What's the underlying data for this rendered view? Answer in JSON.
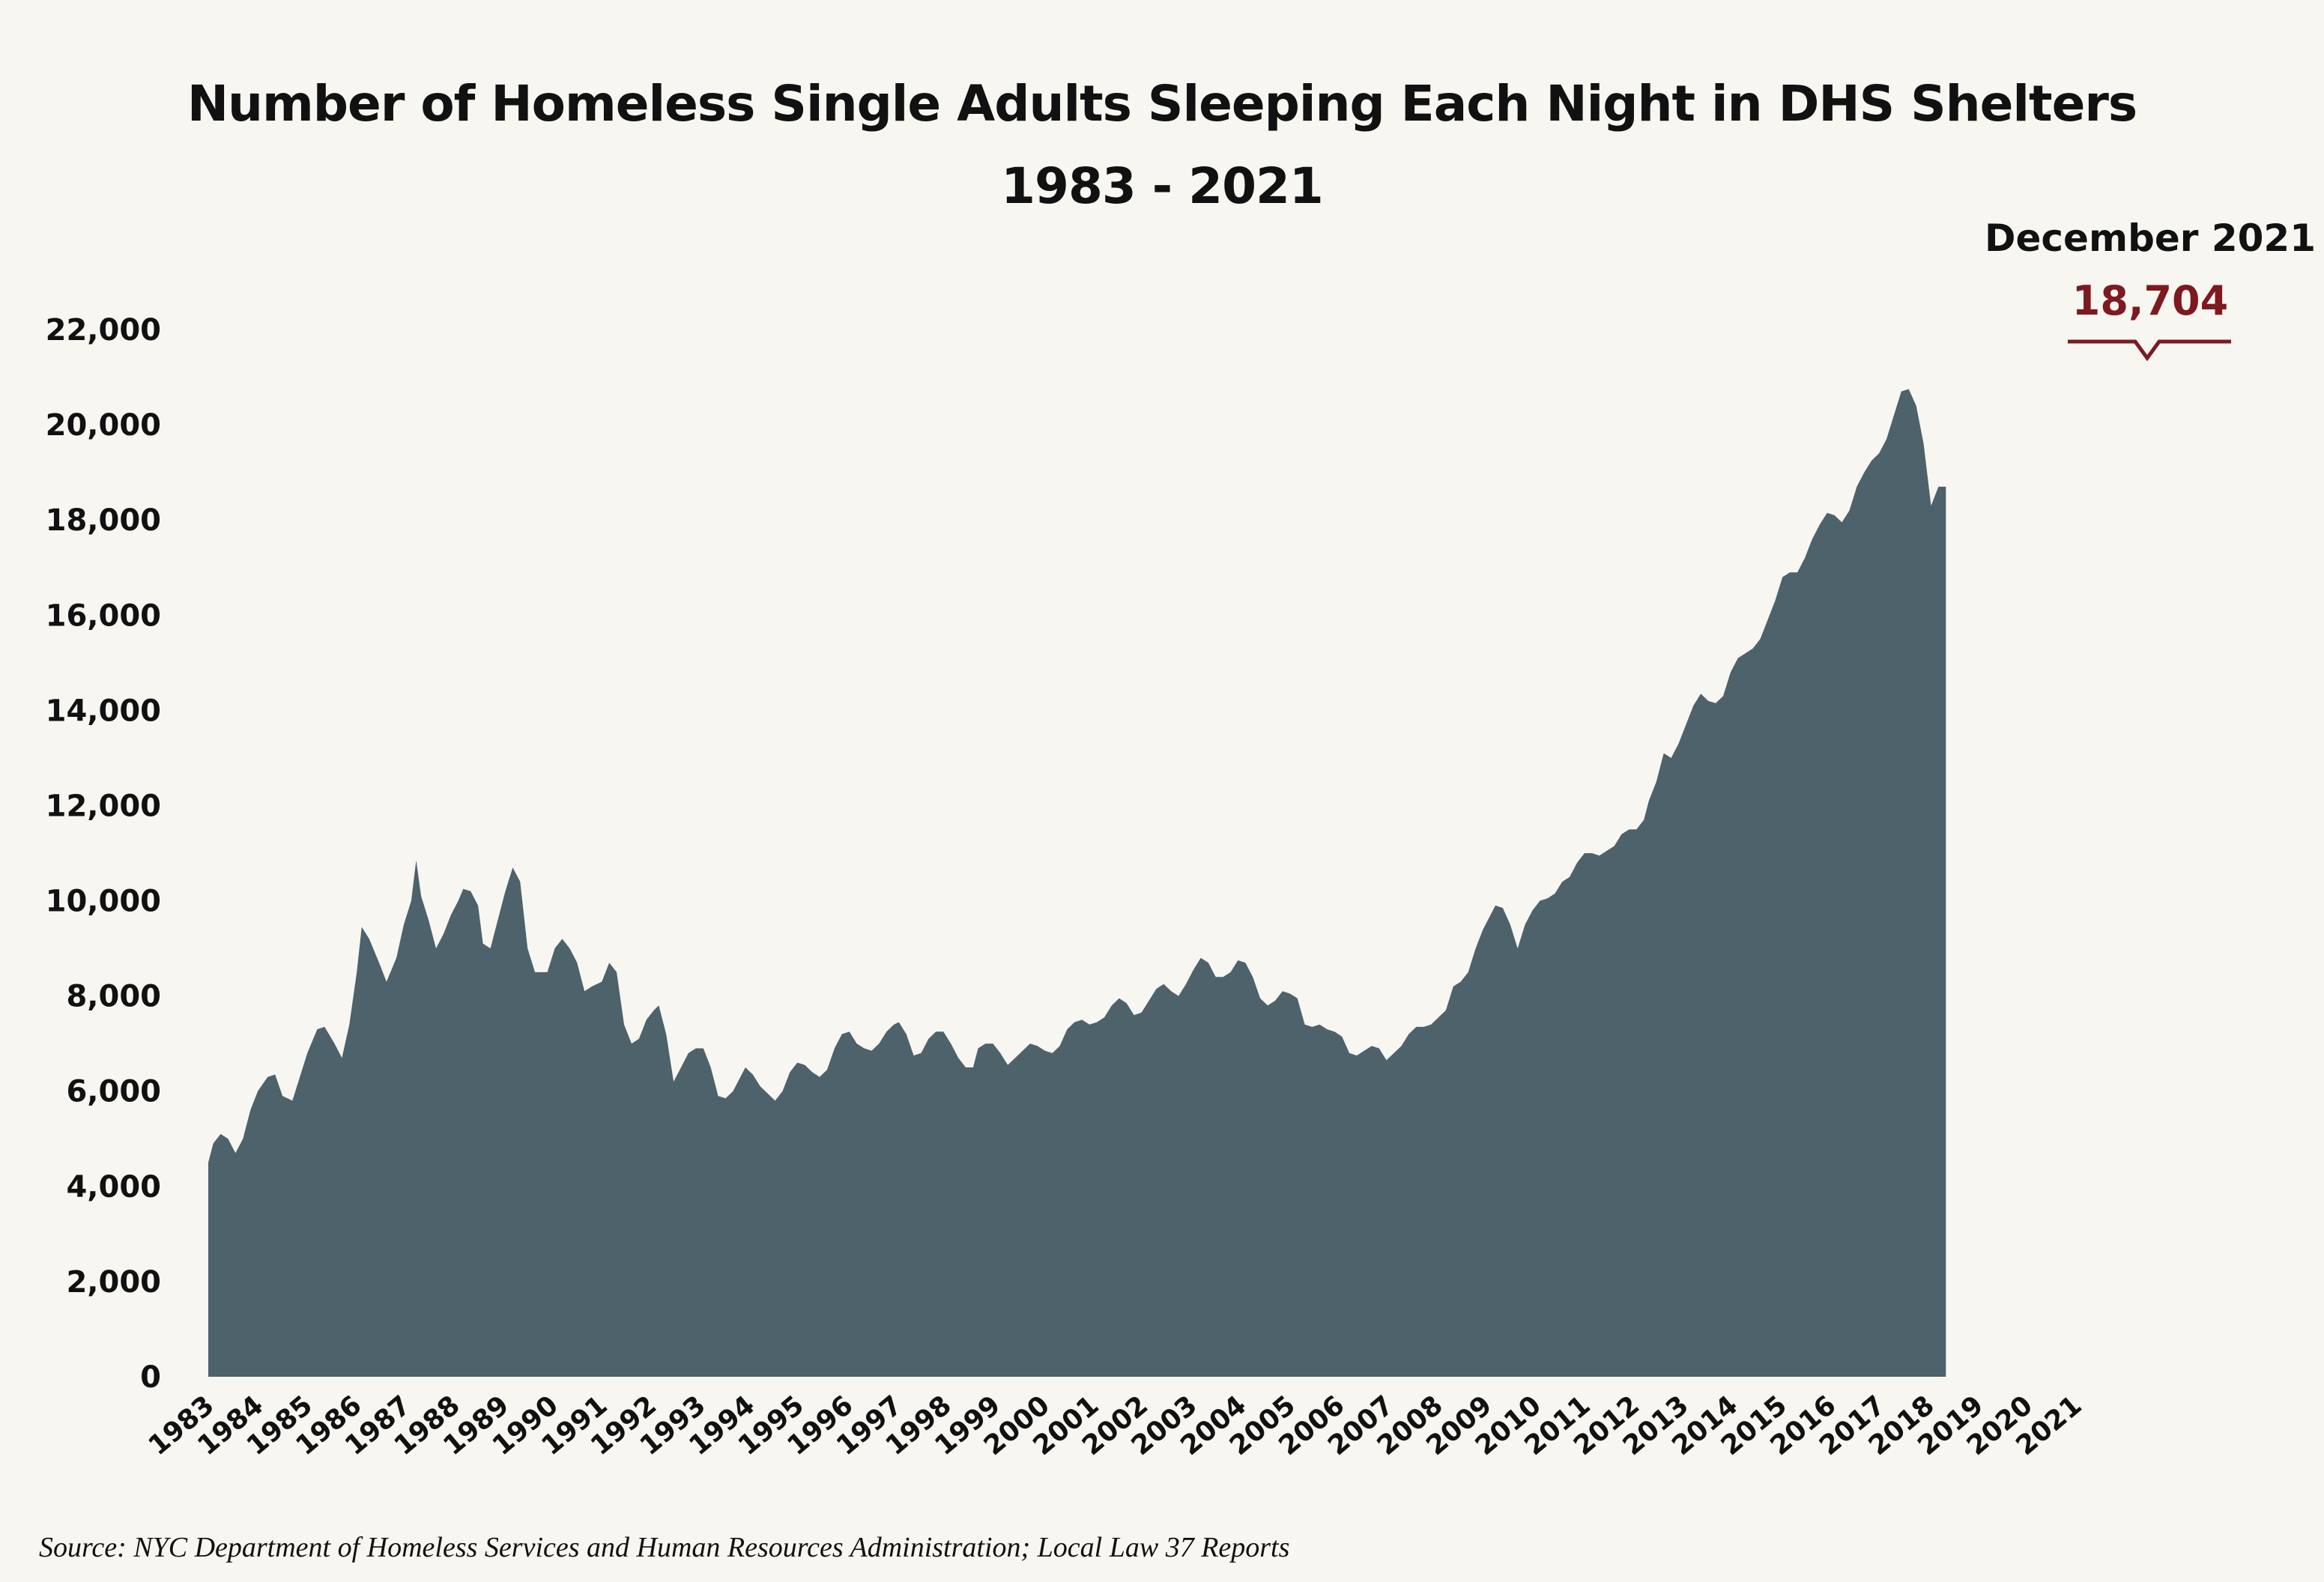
{
  "header": {
    "title_line1": "Number of Homeless Single Adults Sleeping Each Night in DHS Shelters",
    "title_line2": "1983 - 2021"
  },
  "annotation": {
    "date_label": "December 2021",
    "value_label": "18,704"
  },
  "source": "Source:  NYC Department of Homeless Services and Human Resources Administration; Local Law 37 Reports",
  "colors": {
    "background": "#f8f6f1",
    "area_fill": "#4d626b",
    "annotation_accent": "#7d1a20"
  },
  "chart_data": {
    "type": "area",
    "title": "Number of Homeless Single Adults Sleeping Each Night in DHS Shelters 1983 - 2021",
    "xlabel": "",
    "ylabel": "",
    "ylim": [
      0,
      22000
    ],
    "yticks": [
      0,
      2000,
      4000,
      6000,
      8000,
      10000,
      12000,
      14000,
      16000,
      18000,
      20000,
      22000
    ],
    "ytick_labels": [
      "0",
      "2,000",
      "4,000",
      "6,000",
      "8,000",
      "10,000",
      "12,000",
      "14,000",
      "16,000",
      "18,000",
      "20,000",
      "22,000"
    ],
    "xtick_labels": [
      "1983",
      "1984",
      "1985",
      "1986",
      "1987",
      "1988",
      "1989",
      "1990",
      "1991",
      "1992",
      "1993",
      "1994",
      "1995",
      "1996",
      "1997",
      "1998",
      "1999",
      "2000",
      "2001",
      "2002",
      "2003",
      "2004",
      "2005",
      "2006",
      "2007",
      "2008",
      "2009",
      "2010",
      "2011",
      "2012",
      "2013",
      "2014",
      "2015",
      "2016",
      "2017",
      "2018",
      "2019",
      "2020",
      "2021"
    ],
    "x_start_year": 1983,
    "x_end_year": 2022,
    "grid": false,
    "legend": "none",
    "series": [
      {
        "points": [
          [
            1983.0,
            4500
          ],
          [
            1983.1,
            4900
          ],
          [
            1983.25,
            5100
          ],
          [
            1983.4,
            5000
          ],
          [
            1983.55,
            4700
          ],
          [
            1983.7,
            5000
          ],
          [
            1983.85,
            5600
          ],
          [
            1984.0,
            6000
          ],
          [
            1984.2,
            6300
          ],
          [
            1984.35,
            6350
          ],
          [
            1984.5,
            5900
          ],
          [
            1984.7,
            5800
          ],
          [
            1984.85,
            6300
          ],
          [
            1985.0,
            6800
          ],
          [
            1985.2,
            7300
          ],
          [
            1985.35,
            7350
          ],
          [
            1985.55,
            7000
          ],
          [
            1985.7,
            6700
          ],
          [
            1985.85,
            7400
          ],
          [
            1986.0,
            8500
          ],
          [
            1986.1,
            9450
          ],
          [
            1986.25,
            9200
          ],
          [
            1986.45,
            8700
          ],
          [
            1986.6,
            8300
          ],
          [
            1986.8,
            8800
          ],
          [
            1986.95,
            9500
          ],
          [
            1987.1,
            10000
          ],
          [
            1987.2,
            10850
          ],
          [
            1987.3,
            10100
          ],
          [
            1987.45,
            9600
          ],
          [
            1987.6,
            9000
          ],
          [
            1987.75,
            9300
          ],
          [
            1987.9,
            9700
          ],
          [
            1988.05,
            10000
          ],
          [
            1988.15,
            10250
          ],
          [
            1988.3,
            10200
          ],
          [
            1988.45,
            9900
          ],
          [
            1988.55,
            9100
          ],
          [
            1988.7,
            9000
          ],
          [
            1988.85,
            9600
          ],
          [
            1989.0,
            10200
          ],
          [
            1989.15,
            10700
          ],
          [
            1989.3,
            10400
          ],
          [
            1989.45,
            9000
          ],
          [
            1989.6,
            8500
          ],
          [
            1989.85,
            8500
          ],
          [
            1990.0,
            9000
          ],
          [
            1990.15,
            9200
          ],
          [
            1990.3,
            9000
          ],
          [
            1990.45,
            8700
          ],
          [
            1990.6,
            8100
          ],
          [
            1990.75,
            8200
          ],
          [
            1990.95,
            8300
          ],
          [
            1991.1,
            8700
          ],
          [
            1991.25,
            8500
          ],
          [
            1991.4,
            7400
          ],
          [
            1991.55,
            7000
          ],
          [
            1991.7,
            7100
          ],
          [
            1991.85,
            7500
          ],
          [
            1992.0,
            7700
          ],
          [
            1992.1,
            7800
          ],
          [
            1992.25,
            7200
          ],
          [
            1992.4,
            6200
          ],
          [
            1992.55,
            6500
          ],
          [
            1992.7,
            6800
          ],
          [
            1992.85,
            6900
          ],
          [
            1993.0,
            6900
          ],
          [
            1993.15,
            6500
          ],
          [
            1993.3,
            5900
          ],
          [
            1993.45,
            5850
          ],
          [
            1993.6,
            6000
          ],
          [
            1993.75,
            6300
          ],
          [
            1993.85,
            6500
          ],
          [
            1994.0,
            6350
          ],
          [
            1994.15,
            6100
          ],
          [
            1994.3,
            5950
          ],
          [
            1994.45,
            5800
          ],
          [
            1994.6,
            6000
          ],
          [
            1994.75,
            6400
          ],
          [
            1994.9,
            6600
          ],
          [
            1995.05,
            6550
          ],
          [
            1995.2,
            6400
          ],
          [
            1995.35,
            6300
          ],
          [
            1995.5,
            6450
          ],
          [
            1995.65,
            6900
          ],
          [
            1995.8,
            7200
          ],
          [
            1995.95,
            7250
          ],
          [
            1996.1,
            7000
          ],
          [
            1996.25,
            6900
          ],
          [
            1996.4,
            6850
          ],
          [
            1996.55,
            7000
          ],
          [
            1996.7,
            7250
          ],
          [
            1996.85,
            7400
          ],
          [
            1996.95,
            7450
          ],
          [
            1997.1,
            7200
          ],
          [
            1997.25,
            6750
          ],
          [
            1997.4,
            6800
          ],
          [
            1997.55,
            7100
          ],
          [
            1997.7,
            7250
          ],
          [
            1997.85,
            7250
          ],
          [
            1998.0,
            7000
          ],
          [
            1998.15,
            6700
          ],
          [
            1998.3,
            6500
          ],
          [
            1998.45,
            6500
          ],
          [
            1998.55,
            6900
          ],
          [
            1998.7,
            7000
          ],
          [
            1998.85,
            7000
          ],
          [
            1999.0,
            6800
          ],
          [
            1999.15,
            6550
          ],
          [
            1999.3,
            6700
          ],
          [
            1999.45,
            6850
          ],
          [
            1999.6,
            7000
          ],
          [
            1999.75,
            6950
          ],
          [
            1999.9,
            6850
          ],
          [
            2000.05,
            6800
          ],
          [
            2000.2,
            6950
          ],
          [
            2000.35,
            7300
          ],
          [
            2000.5,
            7450
          ],
          [
            2000.65,
            7500
          ],
          [
            2000.8,
            7400
          ],
          [
            2000.95,
            7450
          ],
          [
            2001.1,
            7550
          ],
          [
            2001.25,
            7800
          ],
          [
            2001.4,
            7950
          ],
          [
            2001.55,
            7850
          ],
          [
            2001.7,
            7600
          ],
          [
            2001.85,
            7650
          ],
          [
            2002.0,
            7900
          ],
          [
            2002.15,
            8150
          ],
          [
            2002.3,
            8250
          ],
          [
            2002.45,
            8100
          ],
          [
            2002.6,
            8000
          ],
          [
            2002.75,
            8250
          ],
          [
            2002.9,
            8550
          ],
          [
            2003.05,
            8800
          ],
          [
            2003.2,
            8700
          ],
          [
            2003.35,
            8400
          ],
          [
            2003.5,
            8400
          ],
          [
            2003.65,
            8500
          ],
          [
            2003.8,
            8750
          ],
          [
            2003.95,
            8700
          ],
          [
            2004.1,
            8400
          ],
          [
            2004.25,
            7950
          ],
          [
            2004.4,
            7800
          ],
          [
            2004.55,
            7900
          ],
          [
            2004.7,
            8100
          ],
          [
            2004.85,
            8050
          ],
          [
            2005.0,
            7950
          ],
          [
            2005.15,
            7400
          ],
          [
            2005.3,
            7350
          ],
          [
            2005.45,
            7400
          ],
          [
            2005.6,
            7300
          ],
          [
            2005.75,
            7250
          ],
          [
            2005.9,
            7150
          ],
          [
            2006.05,
            6800
          ],
          [
            2006.2,
            6750
          ],
          [
            2006.35,
            6850
          ],
          [
            2006.5,
            6950
          ],
          [
            2006.65,
            6900
          ],
          [
            2006.8,
            6650
          ],
          [
            2006.95,
            6800
          ],
          [
            2007.1,
            6950
          ],
          [
            2007.25,
            7200
          ],
          [
            2007.4,
            7350
          ],
          [
            2007.55,
            7350
          ],
          [
            2007.7,
            7400
          ],
          [
            2007.85,
            7550
          ],
          [
            2008.0,
            7700
          ],
          [
            2008.15,
            8200
          ],
          [
            2008.3,
            8300
          ],
          [
            2008.45,
            8500
          ],
          [
            2008.6,
            9000
          ],
          [
            2008.75,
            9400
          ],
          [
            2008.9,
            9700
          ],
          [
            2009.0,
            9900
          ],
          [
            2009.15,
            9850
          ],
          [
            2009.3,
            9500
          ],
          [
            2009.45,
            9000
          ],
          [
            2009.6,
            9500
          ],
          [
            2009.75,
            9800
          ],
          [
            2009.9,
            10000
          ],
          [
            2010.05,
            10050
          ],
          [
            2010.2,
            10150
          ],
          [
            2010.35,
            10400
          ],
          [
            2010.5,
            10500
          ],
          [
            2010.65,
            10800
          ],
          [
            2010.8,
            11000
          ],
          [
            2010.95,
            11000
          ],
          [
            2011.1,
            10950
          ],
          [
            2011.25,
            11050
          ],
          [
            2011.4,
            11150
          ],
          [
            2011.55,
            11400
          ],
          [
            2011.7,
            11500
          ],
          [
            2011.85,
            11500
          ],
          [
            2012.0,
            11700
          ],
          [
            2012.1,
            12100
          ],
          [
            2012.25,
            12500
          ],
          [
            2012.4,
            13100
          ],
          [
            2012.55,
            13000
          ],
          [
            2012.7,
            13300
          ],
          [
            2012.85,
            13700
          ],
          [
            2013.0,
            14100
          ],
          [
            2013.15,
            14350
          ],
          [
            2013.3,
            14200
          ],
          [
            2013.45,
            14150
          ],
          [
            2013.6,
            14300
          ],
          [
            2013.75,
            14800
          ],
          [
            2013.9,
            15100
          ],
          [
            2014.05,
            15200
          ],
          [
            2014.2,
            15300
          ],
          [
            2014.35,
            15500
          ],
          [
            2014.5,
            15900
          ],
          [
            2014.65,
            16300
          ],
          [
            2014.8,
            16800
          ],
          [
            2014.95,
            16900
          ],
          [
            2015.1,
            16900
          ],
          [
            2015.25,
            17200
          ],
          [
            2015.4,
            17600
          ],
          [
            2015.55,
            17900
          ],
          [
            2015.7,
            18150
          ],
          [
            2015.85,
            18100
          ],
          [
            2016.0,
            17950
          ],
          [
            2016.15,
            18200
          ],
          [
            2016.3,
            18700
          ],
          [
            2016.45,
            19000
          ],
          [
            2016.6,
            19250
          ],
          [
            2016.75,
            19400
          ],
          [
            2016.9,
            19700
          ],
          [
            2017.05,
            20200
          ],
          [
            2017.2,
            20700
          ],
          [
            2017.35,
            20750
          ],
          [
            2017.5,
            20400
          ],
          [
            2017.65,
            19600
          ],
          [
            2017.8,
            18300
          ],
          [
            2017.95,
            18700
          ],
          [
            2018.1,
            18700
          ]
        ]
      }
    ],
    "annotated_point": {
      "label": "December 2021",
      "value": 18704
    }
  }
}
